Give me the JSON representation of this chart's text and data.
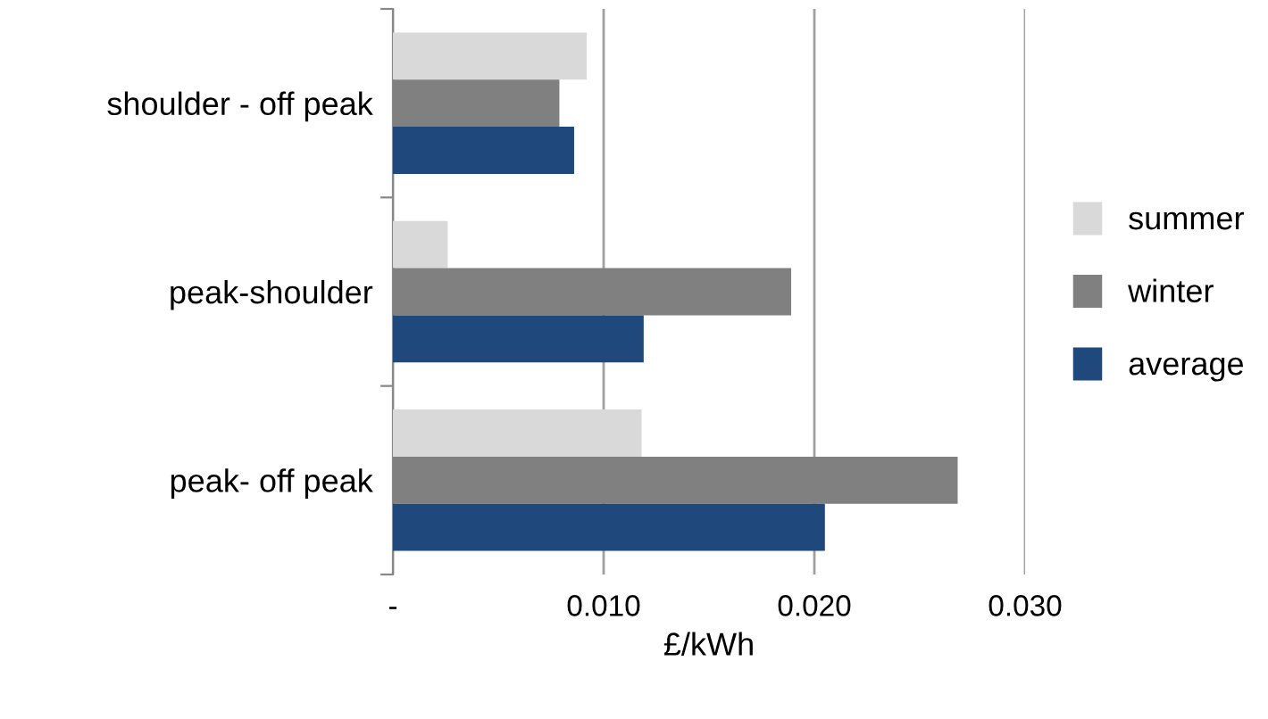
{
  "chart_data": {
    "type": "bar",
    "orientation": "horizontal",
    "xlabel": "£/kWh",
    "categories": [
      "shoulder - off peak",
      "peak-shoulder",
      "peak- off peak"
    ],
    "series": [
      {
        "name": "summer",
        "color": "#d9d9d9",
        "values": [
          0.0092,
          0.0026,
          0.0118
        ]
      },
      {
        "name": "winter",
        "color": "#808080",
        "values": [
          0.0079,
          0.0189,
          0.0268
        ]
      },
      {
        "name": "average",
        "color": "#1f497d",
        "values": [
          0.0086,
          0.0119,
          0.0205
        ]
      }
    ],
    "xlim": [
      0,
      0.03
    ],
    "xticks": [
      {
        "value": 0,
        "label": "-"
      },
      {
        "value": 0.01,
        "label": "0.010"
      },
      {
        "value": 0.02,
        "label": "0.020"
      },
      {
        "value": 0.03,
        "label": "0.030"
      }
    ],
    "grid": "x",
    "legend": "right"
  }
}
